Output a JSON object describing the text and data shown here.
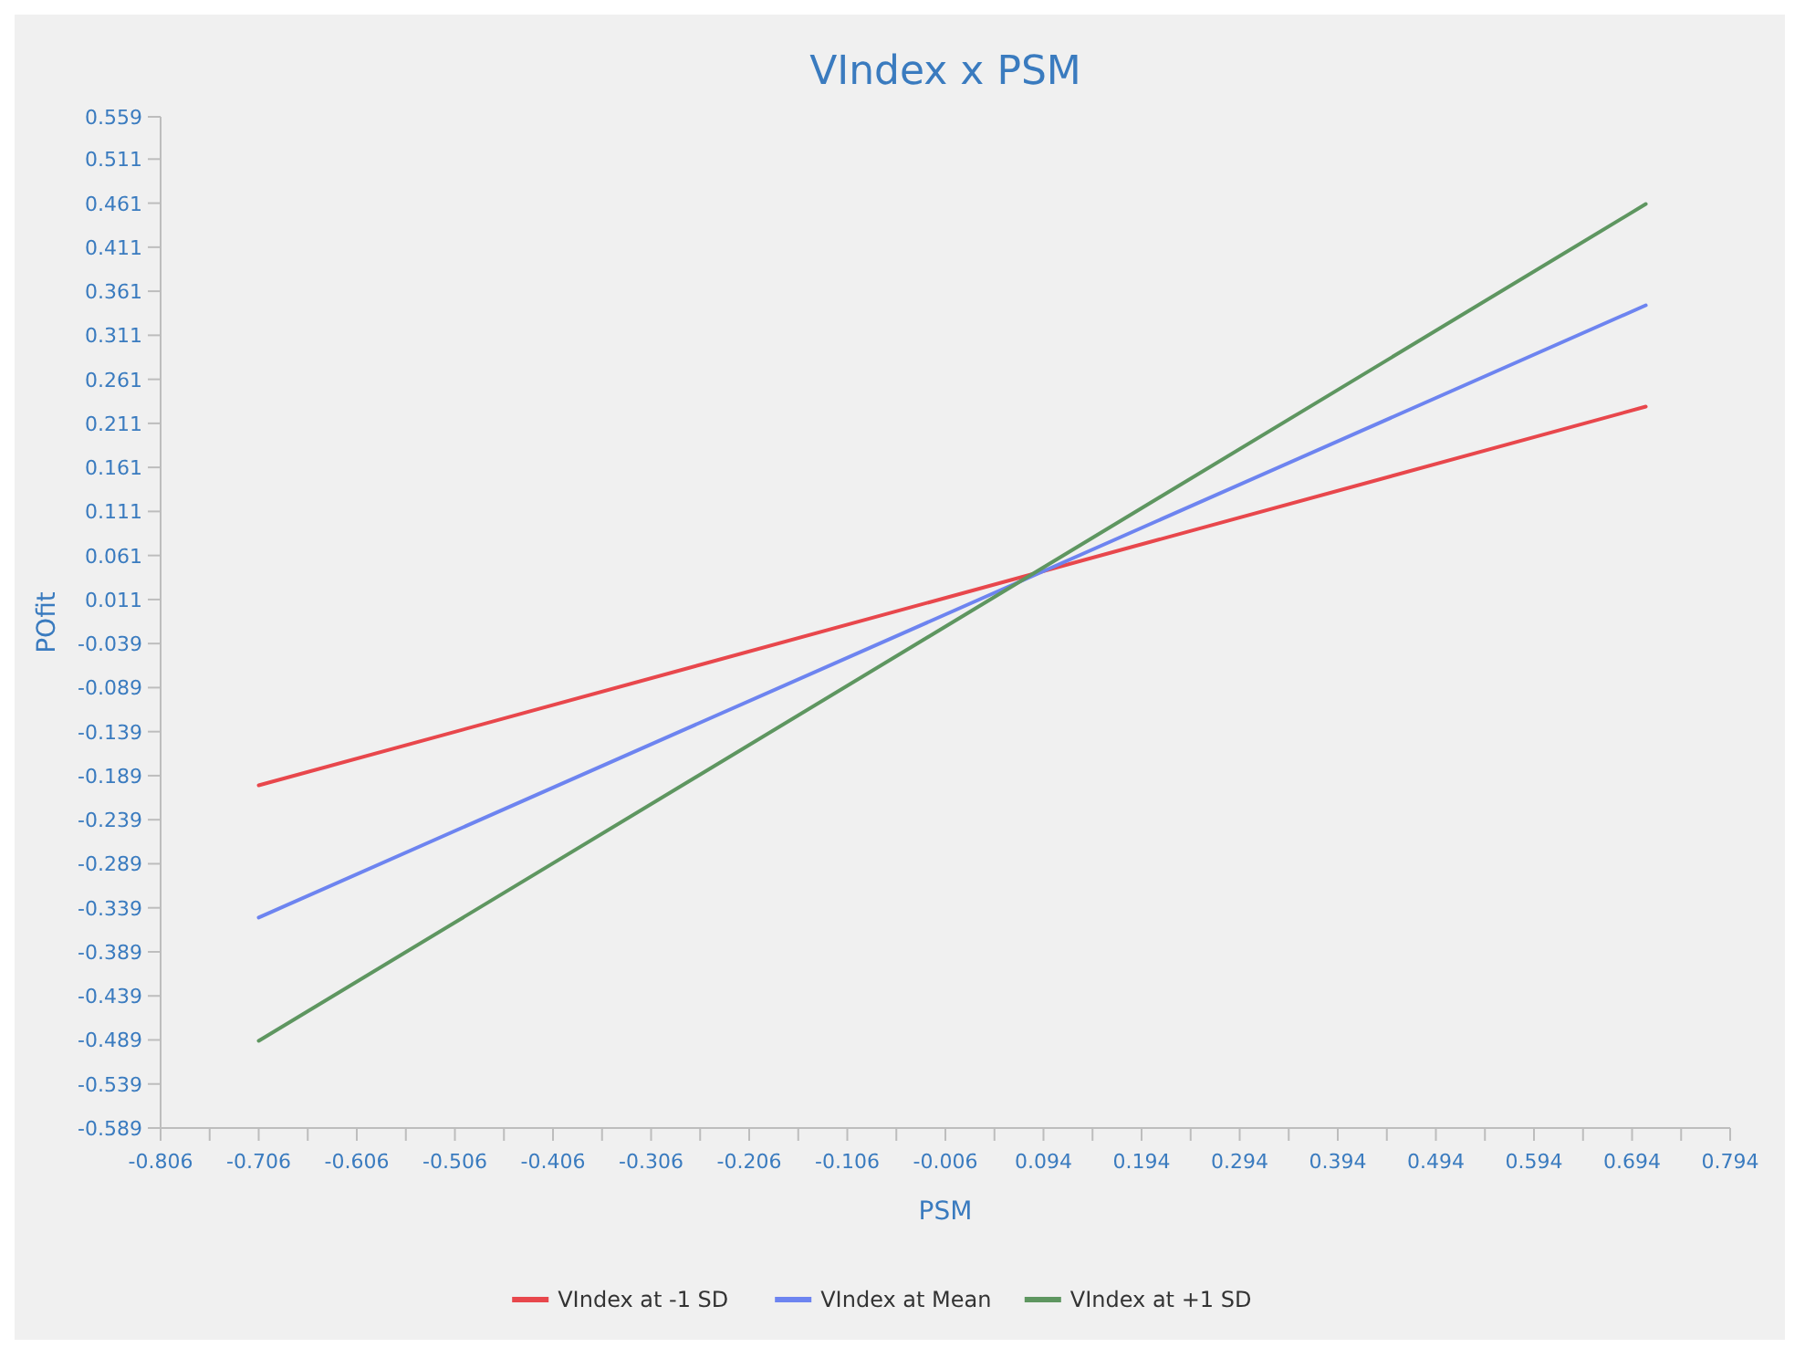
{
  "chart_data": {
    "type": "line",
    "title": "VIndex x PSM",
    "xlabel": "PSM",
    "ylabel": "POfit",
    "xlim": [
      -0.806,
      0.794
    ],
    "xticks": [
      -0.806,
      {
        "value": -0.756,
        "label": null
      },
      -0.706,
      {
        "value": -0.656,
        "label": null
      },
      -0.606,
      {
        "value": -0.556,
        "label": null
      },
      -0.506,
      {
        "value": -0.456,
        "label": null
      },
      -0.406,
      {
        "value": -0.356,
        "label": null
      },
      -0.306,
      {
        "value": -0.256,
        "label": null
      },
      -0.206,
      {
        "value": -0.156,
        "label": null
      },
      -0.106,
      {
        "value": -0.056,
        "label": null
      },
      -0.006,
      {
        "value": 0.044,
        "label": null
      },
      0.094,
      {
        "value": 0.144,
        "label": null
      },
      0.194,
      {
        "value": 0.244,
        "label": null
      },
      0.294,
      {
        "value": 0.344,
        "label": null
      },
      0.394,
      {
        "value": 0.444,
        "label": null
      },
      0.494,
      {
        "value": 0.544,
        "label": null
      },
      0.594,
      {
        "value": 0.644,
        "label": null
      },
      0.694,
      {
        "value": 0.744,
        "label": null
      },
      0.794
    ],
    "ylim": [
      -0.589,
      0.559
    ],
    "yticks": [
      -0.589,
      -0.539,
      -0.489,
      -0.439,
      -0.389,
      -0.339,
      -0.289,
      -0.239,
      -0.189,
      -0.139,
      -0.089,
      -0.039,
      0.011,
      0.061,
      0.111,
      0.161,
      0.211,
      0.261,
      0.311,
      0.361,
      0.411,
      0.461,
      0.511,
      0.559
    ],
    "x": [
      -0.706,
      0.708
    ],
    "series": [
      {
        "name": "VIndex at -1 SD",
        "color": "#e8474c",
        "values": [
          -0.2,
          0.23
        ]
      },
      {
        "name": "VIndex at Mean",
        "color": "#6d84f0",
        "values": [
          -0.35,
          0.345
        ]
      },
      {
        "name": "VIndex at +1 SD",
        "color": "#5e9660",
        "values": [
          -0.49,
          0.46
        ]
      }
    ],
    "grid": false,
    "legend": "bottom",
    "marker": "none",
    "line_style": "solid"
  }
}
